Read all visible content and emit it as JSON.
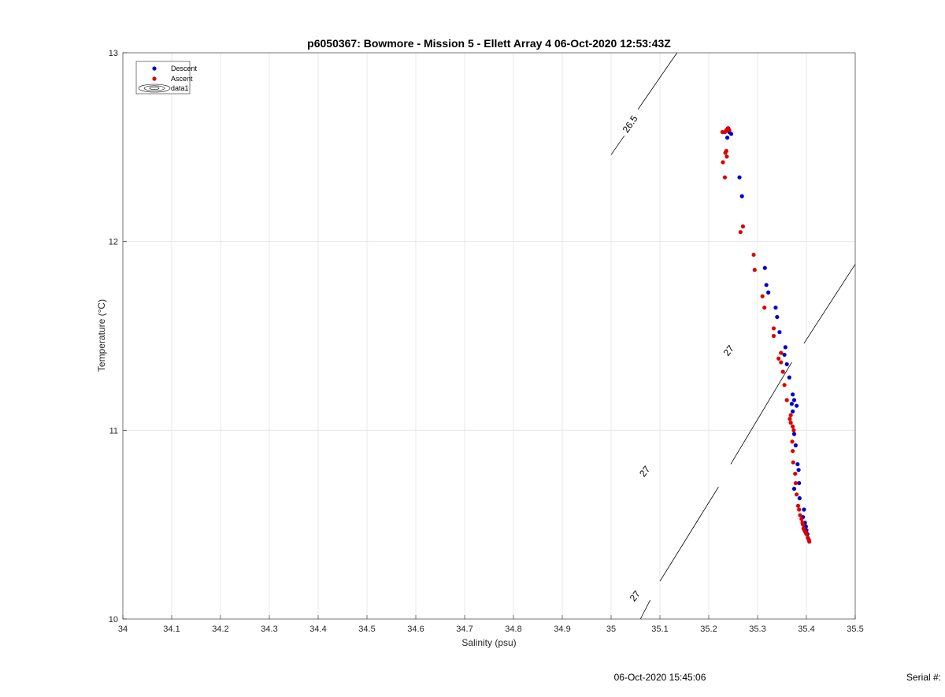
{
  "chart_data": {
    "type": "scatter",
    "title": "p6050367: Bowmore - Mission 5 - Ellett Array 4 06-Oct-2020 12:53:43Z",
    "xlabel": "Salinity (psu)",
    "ylabel": "Temperature (°C)",
    "xlim": [
      34,
      35.5
    ],
    "ylim": [
      10,
      13
    ],
    "x_ticks": [
      "34",
      "34.1",
      "34.2",
      "34.3",
      "34.4",
      "34.5",
      "34.6",
      "34.7",
      "34.8",
      "34.9",
      "35",
      "35.1",
      "35.2",
      "35.3",
      "35.4",
      "35.5"
    ],
    "y_ticks": [
      "10",
      "11",
      "12",
      "13"
    ],
    "grid": true,
    "legend_position": "top-left",
    "legend": [
      "Descent",
      "Ascent",
      "data1"
    ],
    "series": [
      {
        "name": "Descent",
        "color": "#0000cc",
        "points": [
          [
            35.24,
            12.6
          ],
          [
            35.238,
            12.59
          ],
          [
            35.242,
            12.58
          ],
          [
            35.246,
            12.57
          ],
          [
            35.238,
            12.55
          ],
          [
            35.263,
            12.34
          ],
          [
            35.268,
            12.24
          ],
          [
            35.315,
            11.86
          ],
          [
            35.318,
            11.77
          ],
          [
            35.322,
            11.73
          ],
          [
            35.337,
            11.65
          ],
          [
            35.34,
            11.6
          ],
          [
            35.345,
            11.52
          ],
          [
            35.357,
            11.44
          ],
          [
            35.355,
            11.4
          ],
          [
            35.36,
            11.35
          ],
          [
            35.365,
            11.28
          ],
          [
            35.372,
            11.19
          ],
          [
            35.375,
            11.16
          ],
          [
            35.37,
            11.14
          ],
          [
            35.38,
            11.13
          ],
          [
            35.372,
            11.1
          ],
          [
            35.375,
            10.98
          ],
          [
            35.378,
            10.92
          ],
          [
            35.382,
            10.82
          ],
          [
            35.384,
            10.79
          ],
          [
            35.385,
            10.72
          ],
          [
            35.375,
            10.69
          ],
          [
            35.386,
            10.64
          ],
          [
            35.395,
            10.58
          ],
          [
            35.393,
            10.54
          ],
          [
            35.397,
            10.51
          ],
          [
            35.399,
            10.49
          ],
          [
            35.4,
            10.47
          ],
          [
            35.402,
            10.45
          ],
          [
            35.403,
            10.43
          ],
          [
            35.405,
            10.42
          ]
        ]
      },
      {
        "name": "Ascent",
        "color": "#dd0000",
        "points": [
          [
            35.228,
            12.58
          ],
          [
            35.233,
            12.58
          ],
          [
            35.236,
            12.59
          ],
          [
            35.239,
            12.6
          ],
          [
            35.242,
            12.59
          ],
          [
            35.236,
            12.48
          ],
          [
            35.234,
            12.47
          ],
          [
            35.237,
            12.45
          ],
          [
            35.229,
            12.42
          ],
          [
            35.233,
            12.34
          ],
          [
            35.27,
            12.08
          ],
          [
            35.265,
            12.05
          ],
          [
            35.292,
            11.93
          ],
          [
            35.294,
            11.85
          ],
          [
            35.31,
            11.71
          ],
          [
            35.314,
            11.65
          ],
          [
            35.333,
            11.54
          ],
          [
            35.333,
            11.5
          ],
          [
            35.348,
            11.41
          ],
          [
            35.343,
            11.38
          ],
          [
            35.348,
            11.36
          ],
          [
            35.352,
            11.31
          ],
          [
            35.355,
            11.24
          ],
          [
            35.36,
            11.16
          ],
          [
            35.368,
            11.08
          ],
          [
            35.366,
            11.06
          ],
          [
            35.368,
            11.04
          ],
          [
            35.372,
            11.02
          ],
          [
            35.374,
            11.0
          ],
          [
            35.371,
            10.94
          ],
          [
            35.372,
            10.89
          ],
          [
            35.373,
            10.83
          ],
          [
            35.377,
            10.77
          ],
          [
            35.378,
            10.72
          ],
          [
            35.38,
            10.66
          ],
          [
            35.383,
            10.6
          ],
          [
            35.385,
            10.58
          ],
          [
            35.387,
            10.55
          ],
          [
            35.39,
            10.53
          ],
          [
            35.392,
            10.51
          ],
          [
            35.393,
            10.5
          ],
          [
            35.394,
            10.48
          ],
          [
            35.396,
            10.47
          ],
          [
            35.398,
            10.46
          ],
          [
            35.4,
            10.45
          ],
          [
            35.403,
            10.43
          ],
          [
            35.405,
            10.42
          ],
          [
            35.406,
            10.41
          ]
        ]
      }
    ],
    "contours": [
      {
        "name": "data1",
        "level_labels": [
          {
            "text": "26.5",
            "x": 35.04,
            "y": 12.62,
            "angle": -55
          },
          {
            "text": "27",
            "x": 35.242,
            "y": 11.42,
            "angle": -52
          },
          {
            "text": "27",
            "x": 35.07,
            "y": 10.78,
            "angle": -52
          },
          {
            "text": "27",
            "x": 35.05,
            "y": 10.12,
            "angle": -52
          }
        ],
        "segments": [
          [
            [
              35.0,
              12.46
            ],
            [
              35.027,
              12.56
            ]
          ],
          [
            [
              35.055,
              12.7
            ],
            [
              35.135,
              13.0
            ]
          ],
          [
            [
              35.06,
              10.0
            ],
            [
              35.08,
              10.1
            ]
          ],
          [
            [
              35.1,
              10.2
            ],
            [
              35.22,
              10.7
            ]
          ],
          [
            [
              35.245,
              10.82
            ],
            [
              35.37,
              11.36
            ]
          ],
          [
            [
              35.395,
              11.46
            ],
            [
              35.5,
              11.88
            ]
          ]
        ]
      }
    ]
  },
  "footer": {
    "timestamp": "06-Oct-2020 15:45:06",
    "serial_label": "Serial #:"
  }
}
